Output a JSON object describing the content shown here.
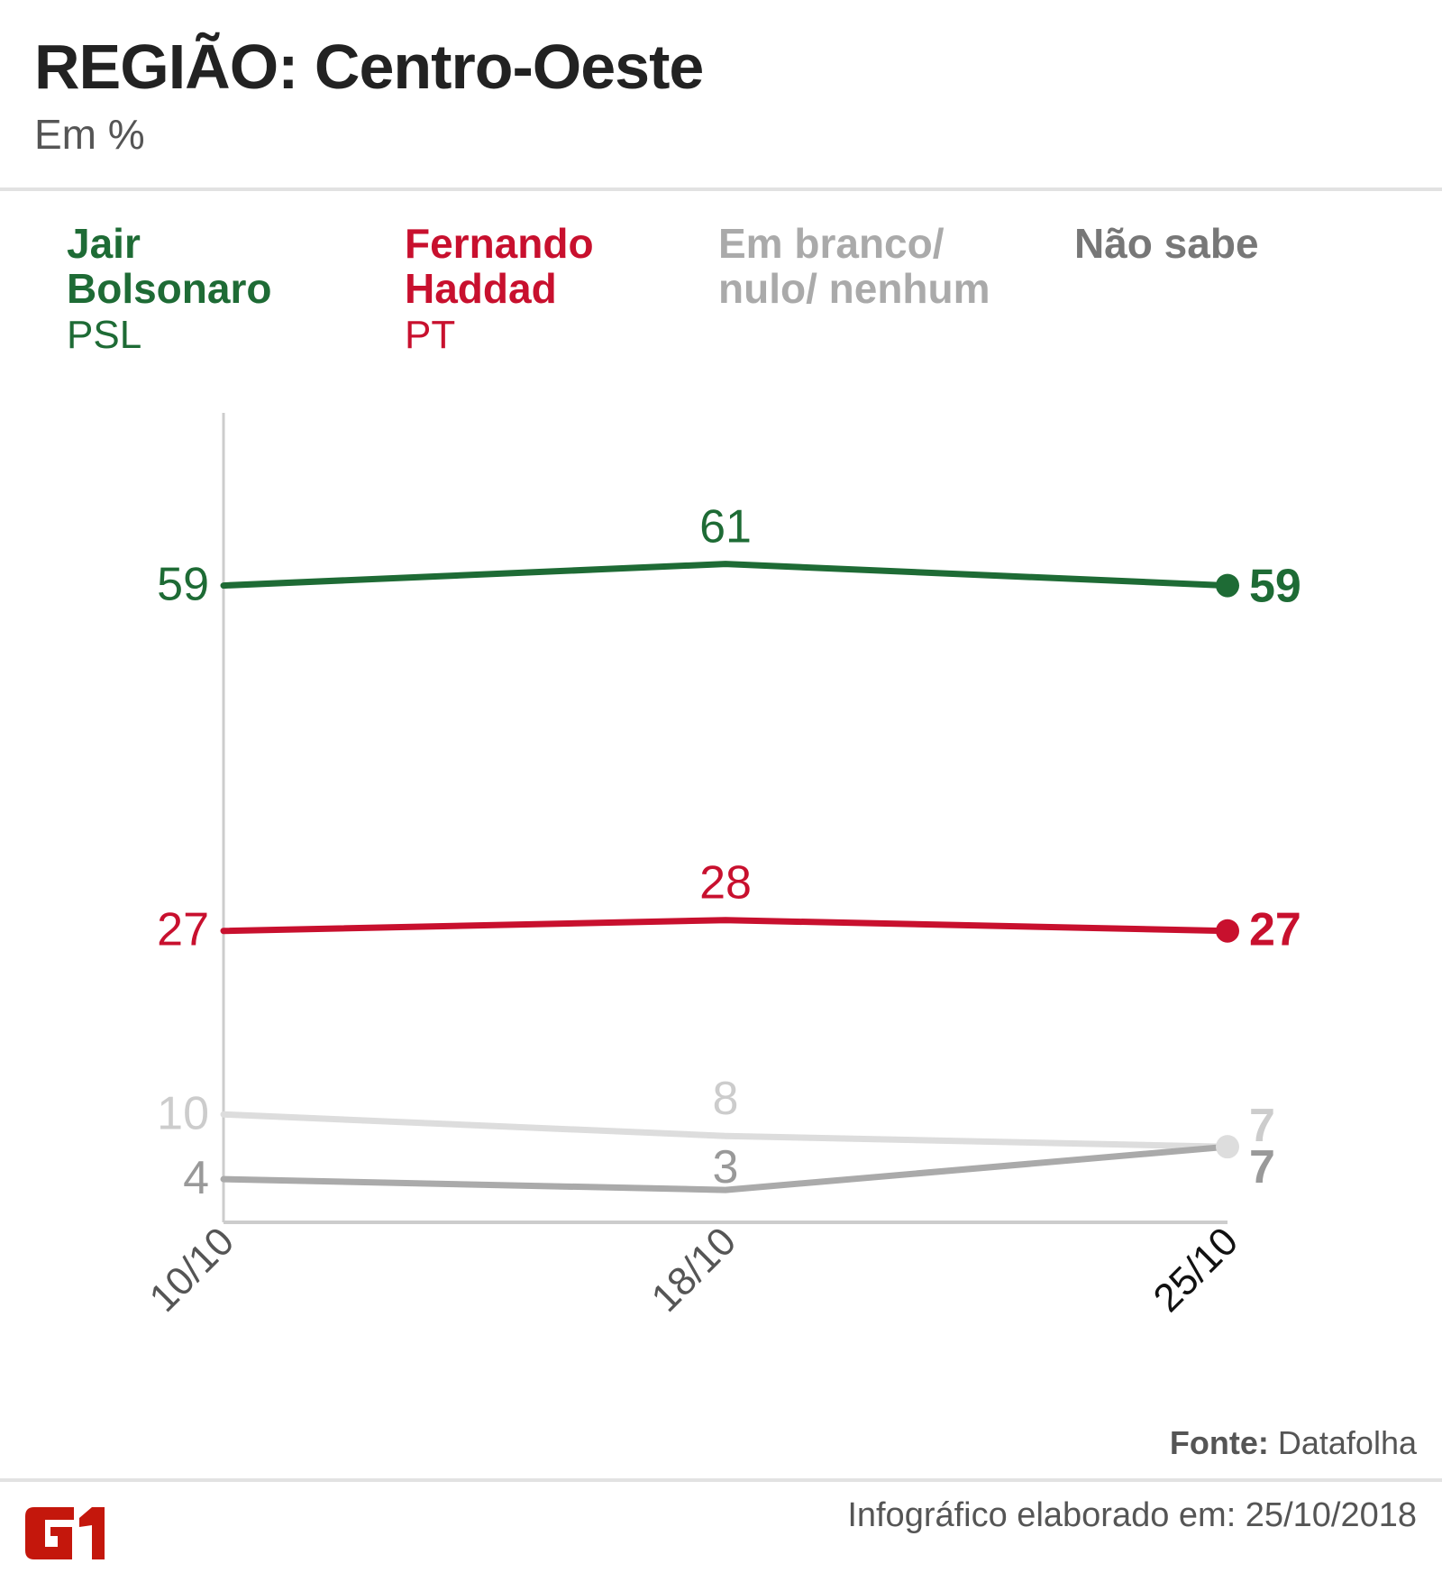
{
  "header": {
    "title": "REGIÃO: Centro-Oeste",
    "subtitle": "Em %"
  },
  "legend": [
    {
      "name_line1": "Jair",
      "name_line2": "Bolsonaro",
      "party": "PSL",
      "color": "#1e6b35"
    },
    {
      "name_line1": "Fernando",
      "name_line2": "Haddad",
      "party": "PT",
      "color": "#c8102e"
    },
    {
      "name_line1": "Em branco/",
      "name_line2": "nulo/ nenhum",
      "party": "",
      "color": "#aaaaaa"
    },
    {
      "name_line1": "Não sabe",
      "name_line2": "",
      "party": "",
      "color": "#777777"
    }
  ],
  "chart_data": {
    "type": "line",
    "title": "REGIÃO: Centro-Oeste",
    "subtitle": "Em %",
    "xlabel": "",
    "ylabel": "%",
    "categories": [
      "10/10",
      "18/10",
      "25/10"
    ],
    "ylim": [
      0,
      75
    ],
    "grid": false,
    "legend_position": "top",
    "series": [
      {
        "name": "Jair Bolsonaro (PSL)",
        "values": [
          59,
          61,
          59
        ],
        "color": "#1e6b35",
        "label_color": "#1e6b35"
      },
      {
        "name": "Fernando Haddad (PT)",
        "values": [
          27,
          28,
          27
        ],
        "color": "#c8102e",
        "label_color": "#c8102e"
      },
      {
        "name": "Em branco/nulo/nenhum",
        "values": [
          10,
          8,
          7
        ],
        "color": "#dddddd",
        "label_color": "#cccccc"
      },
      {
        "name": "Não sabe",
        "values": [
          4,
          3,
          7
        ],
        "color": "#aaaaaa",
        "label_color": "#999999"
      }
    ]
  },
  "footer": {
    "source_label": "Fonte:",
    "source_value": "Datafolha",
    "made_on": "Infográfico elaborado em: 25/10/2018",
    "logo_text": "G1",
    "logo_color": "#c4170c"
  }
}
